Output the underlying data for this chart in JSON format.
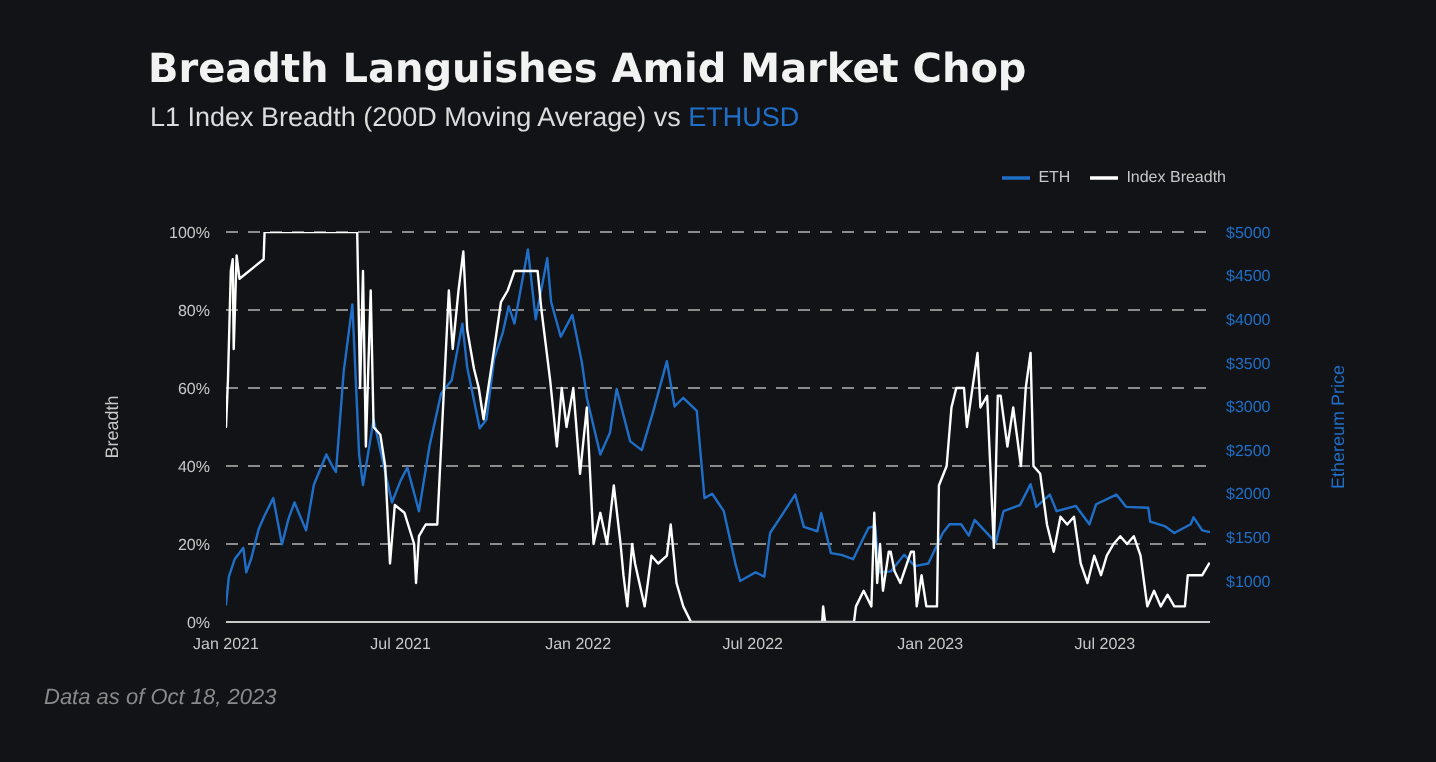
{
  "chart_data": {
    "type": "line",
    "title": "Breadth Languishes Amid Market Chop",
    "subtitle": "L1 Index Breadth (200D Moving Average) vs ETHUSD",
    "ylabel": "Breadth",
    "y2label": "Ethereum Price",
    "annotations": [
      "Data as of Oct 18, 2023"
    ],
    "legend": "top right",
    "grid": "y",
    "marker": "none",
    "line_style": "solid",
    "xlim": [
      "2021-01-01",
      "2023-10-18"
    ],
    "xticks": [
      {
        "value": "2021-01-01",
        "label": "Jan 2021"
      },
      {
        "value": "2021-07-01",
        "label": "Jul 2021"
      },
      {
        "value": "2022-01-01",
        "label": "Jan 2022"
      },
      {
        "value": "2022-07-01",
        "label": "Jul 2022"
      },
      {
        "value": "2023-01-01",
        "label": "Jan 2023"
      },
      {
        "value": "2023-07-01",
        "label": "Jul 2023"
      }
    ],
    "ylim": [
      0,
      100
    ],
    "yticks": [
      {
        "value": 0,
        "label": "0%"
      },
      {
        "value": 20,
        "label": "20%"
      },
      {
        "value": 40,
        "label": "40%"
      },
      {
        "value": 60,
        "label": "60%"
      },
      {
        "value": 80,
        "label": "80%"
      },
      {
        "value": 100,
        "label": "100%"
      }
    ],
    "y2lim": [
      530,
      5000
    ],
    "y2ticks": [
      {
        "value": 1000,
        "label": "$1000"
      },
      {
        "value": 1500,
        "label": "$1500"
      },
      {
        "value": 2000,
        "label": "$2000"
      },
      {
        "value": 2500,
        "label": "$2500"
      },
      {
        "value": 3000,
        "label": "$3000"
      },
      {
        "value": 3500,
        "label": "$3500"
      },
      {
        "value": 4000,
        "label": "$4000"
      },
      {
        "value": 4500,
        "label": "$4500"
      },
      {
        "value": 5000,
        "label": "$5000"
      }
    ],
    "series": [
      {
        "name": "ETH",
        "color": "#1f6fc8",
        "axis": "y2",
        "x": [
          "2021-01-01",
          "2021-01-04",
          "2021-01-10",
          "2021-01-19",
          "2021-01-22",
          "2021-01-27",
          "2021-02-04",
          "2021-02-10",
          "2021-02-19",
          "2021-02-28",
          "2021-03-07",
          "2021-03-13",
          "2021-03-25",
          "2021-04-02",
          "2021-04-15",
          "2021-04-22",
          "2021-04-25",
          "2021-05-03",
          "2021-05-12",
          "2021-05-19",
          "2021-05-23",
          "2021-06-03",
          "2021-06-10",
          "2021-06-22",
          "2021-07-01",
          "2021-07-08",
          "2021-07-20",
          "2021-07-31",
          "2021-08-12",
          "2021-08-23",
          "2021-09-03",
          "2021-09-08",
          "2021-09-21",
          "2021-09-28",
          "2021-10-06",
          "2021-10-15",
          "2021-10-21",
          "2021-10-27",
          "2021-11-10",
          "2021-11-18",
          "2021-11-30",
          "2021-12-04",
          "2021-12-14",
          "2021-12-26",
          "2022-01-05",
          "2022-01-10",
          "2022-01-24",
          "2022-02-03",
          "2022-02-10",
          "2022-02-24",
          "2022-03-08",
          "2022-03-20",
          "2022-04-03",
          "2022-04-11",
          "2022-04-20",
          "2022-05-04",
          "2022-05-12",
          "2022-05-20",
          "2022-06-01",
          "2022-06-13",
          "2022-06-18",
          "2022-07-04",
          "2022-07-13",
          "2022-07-19",
          "2022-07-28",
          "2022-08-14",
          "2022-08-23",
          "2022-09-06",
          "2022-09-10",
          "2022-09-20",
          "2022-10-01",
          "2022-10-13",
          "2022-10-29",
          "2022-11-05",
          "2022-11-09",
          "2022-11-21",
          "2022-12-05",
          "2022-12-16",
          "2022-12-30",
          "2023-01-14",
          "2023-01-21",
          "2023-02-02",
          "2023-02-10",
          "2023-02-16",
          "2023-03-10",
          "2023-03-18",
          "2023-04-04",
          "2023-04-15",
          "2023-04-21",
          "2023-05-05",
          "2023-05-12",
          "2023-06-01",
          "2023-06-15",
          "2023-06-22",
          "2023-07-13",
          "2023-07-23",
          "2023-08-15",
          "2023-08-17",
          "2023-09-01",
          "2023-09-11",
          "2023-09-28",
          "2023-10-01",
          "2023-10-10",
          "2023-10-18"
        ],
        "values": [
          730,
          1050,
          1250,
          1380,
          1100,
          1250,
          1600,
          1750,
          1950,
          1420,
          1720,
          1900,
          1580,
          2100,
          2450,
          2300,
          2250,
          3400,
          4170,
          2450,
          2100,
          2850,
          2500,
          1900,
          2150,
          2300,
          1800,
          2550,
          3150,
          3300,
          3950,
          3450,
          2750,
          2850,
          3550,
          3850,
          4150,
          3950,
          4800,
          4000,
          4700,
          4200,
          3800,
          4050,
          3500,
          3100,
          2450,
          2700,
          3200,
          2600,
          2500,
          2950,
          3520,
          3000,
          3100,
          2950,
          1950,
          2000,
          1800,
          1200,
          1000,
          1100,
          1050,
          1550,
          1700,
          1990,
          1620,
          1570,
          1780,
          1320,
          1300,
          1250,
          1610,
          1630,
          1100,
          1110,
          1300,
          1170,
          1200,
          1550,
          1650,
          1650,
          1520,
          1700,
          1440,
          1800,
          1870,
          2110,
          1850,
          1990,
          1800,
          1860,
          1650,
          1880,
          1990,
          1850,
          1840,
          1680,
          1630,
          1550,
          1650,
          1730,
          1580,
          1560
        ]
      },
      {
        "name": "Index Breadth",
        "color": "#ffffff",
        "x": [
          "2021-01-01",
          "2021-01-03",
          "2021-01-06",
          "2021-01-08",
          "2021-01-09",
          "2021-01-12",
          "2021-01-15",
          "2021-02-09",
          "2021-02-10",
          "2021-05-17",
          "2021-05-20",
          "2021-05-23",
          "2021-05-26",
          "2021-05-31",
          "2021-06-03",
          "2021-06-10",
          "2021-06-15",
          "2021-06-20",
          "2021-06-25",
          "2021-07-05",
          "2021-07-15",
          "2021-07-17",
          "2021-07-20",
          "2021-07-27",
          "2021-08-08",
          "2021-08-13",
          "2021-08-20",
          "2021-08-24",
          "2021-08-30",
          "2021-09-04",
          "2021-09-08",
          "2021-09-15",
          "2021-09-20",
          "2021-09-25",
          "2021-10-06",
          "2021-10-13",
          "2021-10-20",
          "2021-10-27",
          "2021-11-20",
          "2021-11-24",
          "2021-12-03",
          "2021-12-10",
          "2021-12-15",
          "2021-12-20",
          "2021-12-27",
          "2022-01-03",
          "2022-01-10",
          "2022-01-17",
          "2022-01-24",
          "2022-01-31",
          "2022-02-07",
          "2022-02-14",
          "2022-02-17",
          "2022-02-21",
          "2022-02-26",
          "2022-03-01",
          "2022-03-11",
          "2022-03-18",
          "2022-03-25",
          "2022-04-03",
          "2022-04-07",
          "2022-04-13",
          "2022-04-20",
          "2022-04-28",
          "2022-09-11",
          "2022-09-12",
          "2022-09-14",
          "2022-10-14",
          "2022-10-16",
          "2022-10-24",
          "2022-11-01",
          "2022-11-04",
          "2022-11-07",
          "2022-11-10",
          "2022-11-13",
          "2022-11-19",
          "2022-11-21",
          "2022-11-25",
          "2022-12-01",
          "2022-12-12",
          "2022-12-15",
          "2022-12-18",
          "2022-12-23",
          "2022-12-28",
          "2023-01-08",
          "2023-01-10",
          "2023-01-18",
          "2023-01-23",
          "2023-01-28",
          "2023-02-05",
          "2023-02-08",
          "2023-02-19",
          "2023-02-22",
          "2023-03-01",
          "2023-03-08",
          "2023-03-12",
          "2023-03-15",
          "2023-03-22",
          "2023-03-28",
          "2023-04-05",
          "2023-04-10",
          "2023-04-15",
          "2023-04-18",
          "2023-04-25",
          "2023-05-02",
          "2023-05-09",
          "2023-05-16",
          "2023-05-23",
          "2023-05-30",
          "2023-06-06",
          "2023-06-13",
          "2023-06-20",
          "2023-06-27",
          "2023-07-03",
          "2023-07-10",
          "2023-07-17",
          "2023-07-24",
          "2023-07-31",
          "2023-08-07",
          "2023-08-14",
          "2023-08-21",
          "2023-08-28",
          "2023-09-04",
          "2023-09-11",
          "2023-09-18",
          "2023-09-22",
          "2023-09-25",
          "2023-10-10",
          "2023-10-17"
        ],
        "values": [
          50,
          62,
          90,
          93,
          70,
          94,
          88,
          93,
          100,
          100,
          60,
          90,
          45,
          85,
          50,
          48,
          40,
          15,
          30,
          28,
          20,
          10,
          22,
          25,
          25,
          50,
          85,
          70,
          85,
          95,
          75,
          65,
          60,
          52,
          70,
          82,
          85,
          90,
          90,
          80,
          62,
          45,
          60,
          50,
          60,
          38,
          55,
          20,
          28,
          20,
          35,
          20,
          12,
          4,
          20,
          15,
          4,
          17,
          15,
          17,
          25,
          10,
          4,
          0,
          0,
          4,
          0,
          0,
          4,
          8,
          4,
          28,
          10,
          20,
          8,
          18,
          18,
          13,
          10,
          18,
          18,
          4,
          12,
          4,
          4,
          35,
          40,
          55,
          60,
          60,
          50,
          69,
          55,
          58,
          19,
          58,
          58,
          45,
          55,
          40,
          60,
          69,
          40,
          38,
          25,
          18,
          27,
          25,
          27,
          15,
          10,
          17,
          12,
          17,
          20,
          22,
          20,
          22,
          17,
          4,
          8,
          4,
          7,
          4,
          4,
          4,
          12,
          12,
          15
        ]
      }
    ]
  }
}
